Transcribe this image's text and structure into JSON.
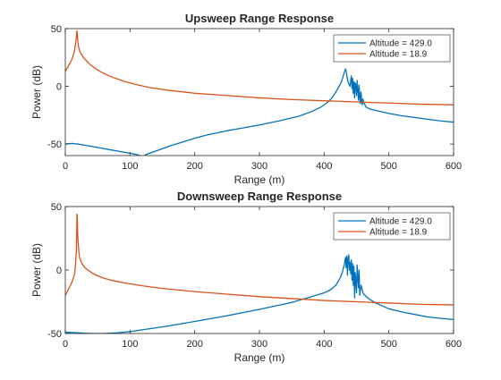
{
  "colors": {
    "series1": "#0072BD",
    "series2": "#D95319",
    "axis": "#262626",
    "background": "#ffffff"
  },
  "chart_data": [
    {
      "type": "line",
      "title": "Upsweep Range Response",
      "xlabel": "Range (m)",
      "ylabel": "Power (dB)",
      "xlim": [
        0,
        600
      ],
      "ylim": [
        -60,
        50
      ],
      "xticks": [
        0,
        100,
        200,
        300,
        400,
        500,
        600
      ],
      "yticks": [
        -50,
        0,
        50
      ],
      "grid": false,
      "legend_position": "top-right",
      "series": [
        {
          "name": "Altitude = 429.0",
          "color": "#0072BD",
          "x": [
            0,
            10,
            20,
            30,
            40,
            50,
            60,
            70,
            80,
            90,
            100,
            110,
            115,
            120,
            125,
            130,
            140,
            150,
            160,
            180,
            200,
            220,
            250,
            280,
            300,
            330,
            360,
            380,
            395,
            405,
            412,
            418,
            422,
            426,
            429,
            431,
            433,
            434,
            436,
            438,
            440,
            441,
            442,
            443,
            444,
            445,
            446,
            447,
            448,
            449,
            450,
            451,
            452,
            453,
            454,
            455,
            456,
            457,
            458,
            459,
            460,
            461,
            465,
            470,
            480,
            500,
            520,
            540,
            560,
            580,
            600
          ],
          "y": [
            -50,
            -49.5,
            -50,
            -51,
            -52,
            -53,
            -54,
            -55,
            -56,
            -57,
            -58,
            -59,
            -60,
            -61,
            -59,
            -58,
            -56,
            -54,
            -52,
            -48.5,
            -45,
            -42,
            -38.5,
            -35.5,
            -33.5,
            -30,
            -26,
            -22,
            -18,
            -14,
            -10,
            -5,
            -1,
            3,
            8,
            12,
            15,
            13,
            6,
            2,
            0,
            5,
            9,
            -2,
            7,
            -6,
            4,
            -10,
            3,
            0,
            -8,
            5,
            -4,
            -12,
            1,
            -9,
            -15,
            -5,
            -13,
            -16,
            -11,
            -14,
            -18,
            -19.5,
            -21,
            -23.5,
            -25.5,
            -27,
            -28.5,
            -30,
            -31
          ]
        },
        {
          "name": "Altitude = 18.9",
          "color": "#D95319",
          "x": [
            0,
            3,
            6,
            9,
            12,
            14,
            15,
            16,
            17,
            17.5,
            18,
            18.5,
            19,
            20,
            21,
            22,
            23,
            25,
            28,
            32,
            38,
            45,
            55,
            70,
            90,
            110,
            130,
            160,
            200,
            250,
            300,
            350,
            400,
            450,
            500,
            550,
            600
          ],
          "y": [
            13,
            16,
            19,
            22,
            26,
            30,
            34,
            38,
            42,
            46,
            48,
            46,
            41,
            36,
            33,
            31,
            29.5,
            27.5,
            25,
            22.5,
            19,
            16,
            12.5,
            8.5,
            4.5,
            1.5,
            -1,
            -3.5,
            -6,
            -8,
            -10,
            -11.5,
            -12.5,
            -13.5,
            -14.5,
            -15.5,
            -16
          ]
        }
      ]
    },
    {
      "type": "line",
      "title": "Downsweep Range Response",
      "xlabel": "Range (m)",
      "ylabel": "Power (dB)",
      "xlim": [
        0,
        600
      ],
      "ylim": [
        -50,
        50
      ],
      "xticks": [
        0,
        100,
        200,
        300,
        400,
        500,
        600
      ],
      "yticks": [
        -50,
        0,
        50
      ],
      "grid": false,
      "legend_position": "top-right",
      "series": [
        {
          "name": "Altitude = 429.0",
          "color": "#0072BD",
          "x": [
            0,
            20,
            40,
            60,
            80,
            100,
            120,
            140,
            160,
            200,
            250,
            300,
            350,
            380,
            400,
            410,
            418,
            424,
            428,
            431,
            433,
            434,
            435,
            436,
            437,
            438,
            439,
            440,
            441,
            442,
            443,
            444,
            445,
            446,
            447,
            448,
            449,
            450,
            451,
            452,
            453,
            454,
            455,
            457,
            460,
            465,
            470,
            480,
            500,
            520,
            540,
            560,
            580,
            600
          ],
          "y": [
            -49,
            -49.5,
            -50,
            -50,
            -49.5,
            -48.5,
            -47,
            -45.5,
            -44,
            -40.5,
            -36,
            -31,
            -25.5,
            -21,
            -18,
            -15.5,
            -12,
            -7,
            -2,
            4,
            10,
            2,
            11,
            -4,
            9,
            12,
            0,
            6,
            -3,
            8,
            -8,
            5,
            -12,
            3,
            -22,
            -2,
            -9,
            -18,
            4,
            -6,
            -14,
            0,
            -20,
            -12,
            -18,
            -21,
            -23,
            -26,
            -30.5,
            -33,
            -35,
            -37,
            -38,
            -39
          ]
        },
        {
          "name": "Altitude = 18.9",
          "color": "#D95319",
          "x": [
            0,
            3,
            6,
            9,
            12,
            14,
            15,
            16,
            17,
            17.5,
            18,
            18.5,
            19,
            20,
            21,
            22,
            24,
            27,
            30,
            35,
            42,
            50,
            60,
            75,
            95,
            120,
            150,
            200,
            250,
            300,
            350,
            400,
            450,
            500,
            550,
            600
          ],
          "y": [
            -20,
            -17,
            -14,
            -11,
            -7,
            -4,
            0,
            6,
            14,
            24,
            44,
            42,
            30,
            20,
            14,
            10,
            7,
            4,
            2,
            0,
            -2.5,
            -4.5,
            -6.5,
            -8.5,
            -10.5,
            -12.5,
            -14.5,
            -17,
            -19,
            -21,
            -22.5,
            -24,
            -25,
            -26,
            -27,
            -27.5
          ]
        }
      ]
    }
  ]
}
